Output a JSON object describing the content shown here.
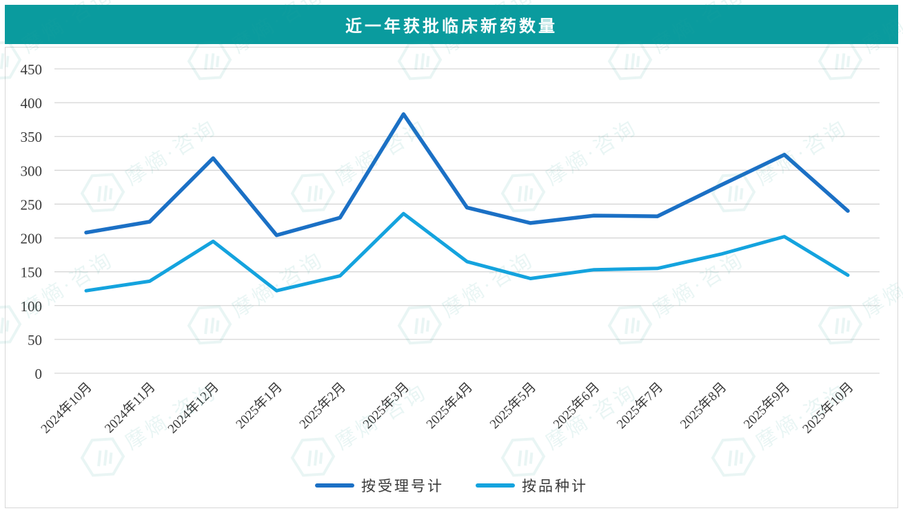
{
  "header": {
    "title": "近一年获批临床新药数量"
  },
  "chart_data": {
    "type": "line",
    "title": "近一年获批临床新药数量",
    "categories": [
      "2024年10月",
      "2024年11月",
      "2024年12月",
      "2025年1月",
      "2025年2月",
      "2025年3月",
      "2025年4月",
      "2025年5月",
      "2025年6月",
      "2025年7月",
      "2025年8月",
      "2025年9月",
      "2025年10月"
    ],
    "series": [
      {
        "name": "按受理号计",
        "color": "#1B70C5",
        "values": [
          208,
          224,
          318,
          204,
          230,
          383,
          245,
          222,
          233,
          232,
          278,
          323,
          240
        ]
      },
      {
        "name": "按品种计",
        "color": "#14A3DE",
        "values": [
          122,
          136,
          195,
          122,
          144,
          236,
          165,
          140,
          153,
          155,
          176,
          202,
          145
        ]
      }
    ],
    "xlabel": "",
    "ylabel": "",
    "ylim": [
      0,
      450
    ],
    "yticks": [
      0,
      50,
      100,
      150,
      200,
      250,
      300,
      350,
      400,
      450
    ],
    "grid": "horizontal",
    "legend_position": "bottom",
    "x_label_rotation": -45
  },
  "colors": {
    "header_bg": "#0A9B9E",
    "header_text": "#FFFFFF",
    "grid_line": "#D6D6D6",
    "axis_text": "#3A3A3A",
    "panel_border": "#D7D7D7",
    "watermark": "#2FA89E"
  },
  "watermark": {
    "text": "摩熵·咨询"
  }
}
